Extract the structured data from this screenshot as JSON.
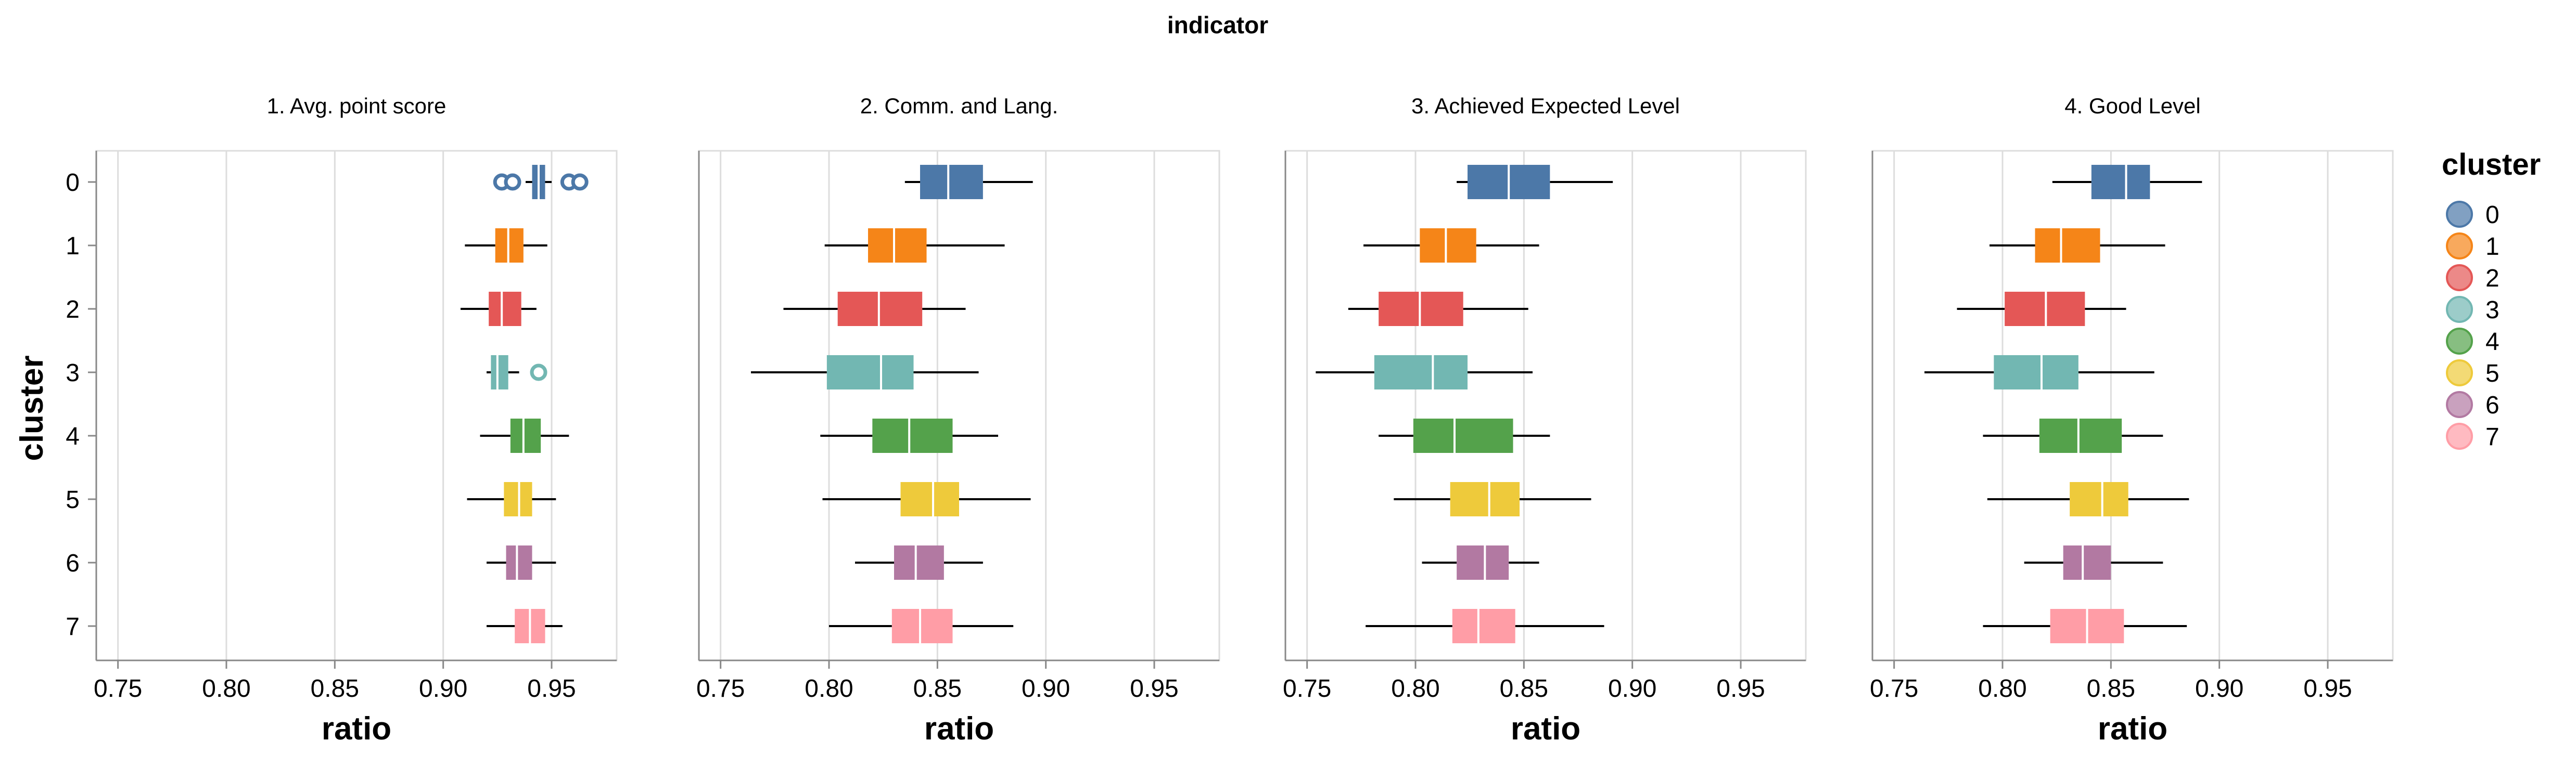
{
  "chart_data": {
    "type": "boxplot",
    "title": "indicator",
    "xlabel": "ratio",
    "ylabel": "cluster",
    "xlim": [
      0.74,
      0.98
    ],
    "x_ticks": [
      "0.75",
      "0.80",
      "0.85",
      "0.90",
      "0.95"
    ],
    "x_tick_values": [
      0.75,
      0.8,
      0.85,
      0.9,
      0.95
    ],
    "categories": [
      "0",
      "1",
      "2",
      "3",
      "4",
      "5",
      "6",
      "7"
    ],
    "legend": {
      "title": "cluster",
      "placement": "right",
      "entries": [
        "0",
        "1",
        "2",
        "3",
        "4",
        "5",
        "6",
        "7"
      ]
    },
    "colors": [
      "#4c78a8",
      "#f58518",
      "#e45756",
      "#72b7b2",
      "#54a24b",
      "#eeca3b",
      "#b279a2",
      "#ff9da6"
    ],
    "grid": true,
    "panels": [
      {
        "title": "1. Avg. point score",
        "boxes": [
          {
            "cluster": "0",
            "min": 0.938,
            "q1": 0.941,
            "median": 0.944,
            "q3": 0.947,
            "max": 0.95,
            "outliers": [
              0.927,
              0.932,
              0.958,
              0.963
            ]
          },
          {
            "cluster": "1",
            "min": 0.91,
            "q1": 0.924,
            "median": 0.93,
            "q3": 0.937,
            "max": 0.948,
            "outliers": []
          },
          {
            "cluster": "2",
            "min": 0.908,
            "q1": 0.921,
            "median": 0.927,
            "q3": 0.936,
            "max": 0.943,
            "outliers": []
          },
          {
            "cluster": "3",
            "min": 0.92,
            "q1": 0.922,
            "median": 0.925,
            "q3": 0.93,
            "max": 0.935,
            "outliers": [
              0.944
            ]
          },
          {
            "cluster": "4",
            "min": 0.917,
            "q1": 0.931,
            "median": 0.937,
            "q3": 0.945,
            "max": 0.958,
            "outliers": []
          },
          {
            "cluster": "5",
            "min": 0.911,
            "q1": 0.928,
            "median": 0.935,
            "q3": 0.941,
            "max": 0.952,
            "outliers": []
          },
          {
            "cluster": "6",
            "min": 0.92,
            "q1": 0.929,
            "median": 0.934,
            "q3": 0.941,
            "max": 0.952,
            "outliers": []
          },
          {
            "cluster": "7",
            "min": 0.92,
            "q1": 0.933,
            "median": 0.94,
            "q3": 0.947,
            "max": 0.955,
            "outliers": []
          }
        ]
      },
      {
        "title": "2. Comm. and Lang.",
        "boxes": [
          {
            "cluster": "0",
            "min": 0.835,
            "q1": 0.842,
            "median": 0.855,
            "q3": 0.871,
            "max": 0.894,
            "outliers": []
          },
          {
            "cluster": "1",
            "min": 0.798,
            "q1": 0.818,
            "median": 0.83,
            "q3": 0.845,
            "max": 0.881,
            "outliers": []
          },
          {
            "cluster": "2",
            "min": 0.779,
            "q1": 0.804,
            "median": 0.823,
            "q3": 0.843,
            "max": 0.863,
            "outliers": []
          },
          {
            "cluster": "3",
            "min": 0.764,
            "q1": 0.799,
            "median": 0.824,
            "q3": 0.839,
            "max": 0.869,
            "outliers": []
          },
          {
            "cluster": "4",
            "min": 0.796,
            "q1": 0.82,
            "median": 0.837,
            "q3": 0.857,
            "max": 0.878,
            "outliers": []
          },
          {
            "cluster": "5",
            "min": 0.797,
            "q1": 0.833,
            "median": 0.848,
            "q3": 0.86,
            "max": 0.893,
            "outliers": []
          },
          {
            "cluster": "6",
            "min": 0.812,
            "q1": 0.83,
            "median": 0.84,
            "q3": 0.853,
            "max": 0.871,
            "outliers": []
          },
          {
            "cluster": "7",
            "min": 0.8,
            "q1": 0.829,
            "median": 0.842,
            "q3": 0.857,
            "max": 0.885,
            "outliers": []
          }
        ]
      },
      {
        "title": "3. Achieved Expected Level",
        "boxes": [
          {
            "cluster": "0",
            "min": 0.819,
            "q1": 0.824,
            "median": 0.843,
            "q3": 0.862,
            "max": 0.891,
            "outliers": []
          },
          {
            "cluster": "1",
            "min": 0.776,
            "q1": 0.802,
            "median": 0.814,
            "q3": 0.828,
            "max": 0.857,
            "outliers": []
          },
          {
            "cluster": "2",
            "min": 0.769,
            "q1": 0.783,
            "median": 0.802,
            "q3": 0.822,
            "max": 0.852,
            "outliers": []
          },
          {
            "cluster": "3",
            "min": 0.754,
            "q1": 0.781,
            "median": 0.808,
            "q3": 0.824,
            "max": 0.854,
            "outliers": []
          },
          {
            "cluster": "4",
            "min": 0.783,
            "q1": 0.799,
            "median": 0.818,
            "q3": 0.845,
            "max": 0.862,
            "outliers": []
          },
          {
            "cluster": "5",
            "min": 0.79,
            "q1": 0.816,
            "median": 0.834,
            "q3": 0.848,
            "max": 0.881,
            "outliers": []
          },
          {
            "cluster": "6",
            "min": 0.803,
            "q1": 0.819,
            "median": 0.832,
            "q3": 0.843,
            "max": 0.857,
            "outliers": []
          },
          {
            "cluster": "7",
            "min": 0.777,
            "q1": 0.817,
            "median": 0.829,
            "q3": 0.846,
            "max": 0.887,
            "outliers": []
          }
        ]
      },
      {
        "title": "4. Good Level",
        "boxes": [
          {
            "cluster": "0",
            "min": 0.823,
            "q1": 0.841,
            "median": 0.857,
            "q3": 0.868,
            "max": 0.892,
            "outliers": []
          },
          {
            "cluster": "1",
            "min": 0.794,
            "q1": 0.815,
            "median": 0.827,
            "q3": 0.845,
            "max": 0.875,
            "outliers": []
          },
          {
            "cluster": "2",
            "min": 0.779,
            "q1": 0.801,
            "median": 0.82,
            "q3": 0.838,
            "max": 0.857,
            "outliers": []
          },
          {
            "cluster": "3",
            "min": 0.764,
            "q1": 0.796,
            "median": 0.818,
            "q3": 0.835,
            "max": 0.87,
            "outliers": []
          },
          {
            "cluster": "4",
            "min": 0.791,
            "q1": 0.817,
            "median": 0.835,
            "q3": 0.855,
            "max": 0.874,
            "outliers": []
          },
          {
            "cluster": "5",
            "min": 0.793,
            "q1": 0.831,
            "median": 0.846,
            "q3": 0.858,
            "max": 0.886,
            "outliers": []
          },
          {
            "cluster": "6",
            "min": 0.81,
            "q1": 0.828,
            "median": 0.837,
            "q3": 0.85,
            "max": 0.874,
            "outliers": []
          },
          {
            "cluster": "7",
            "min": 0.791,
            "q1": 0.822,
            "median": 0.839,
            "q3": 0.856,
            "max": 0.885,
            "outliers": []
          }
        ]
      }
    ]
  }
}
